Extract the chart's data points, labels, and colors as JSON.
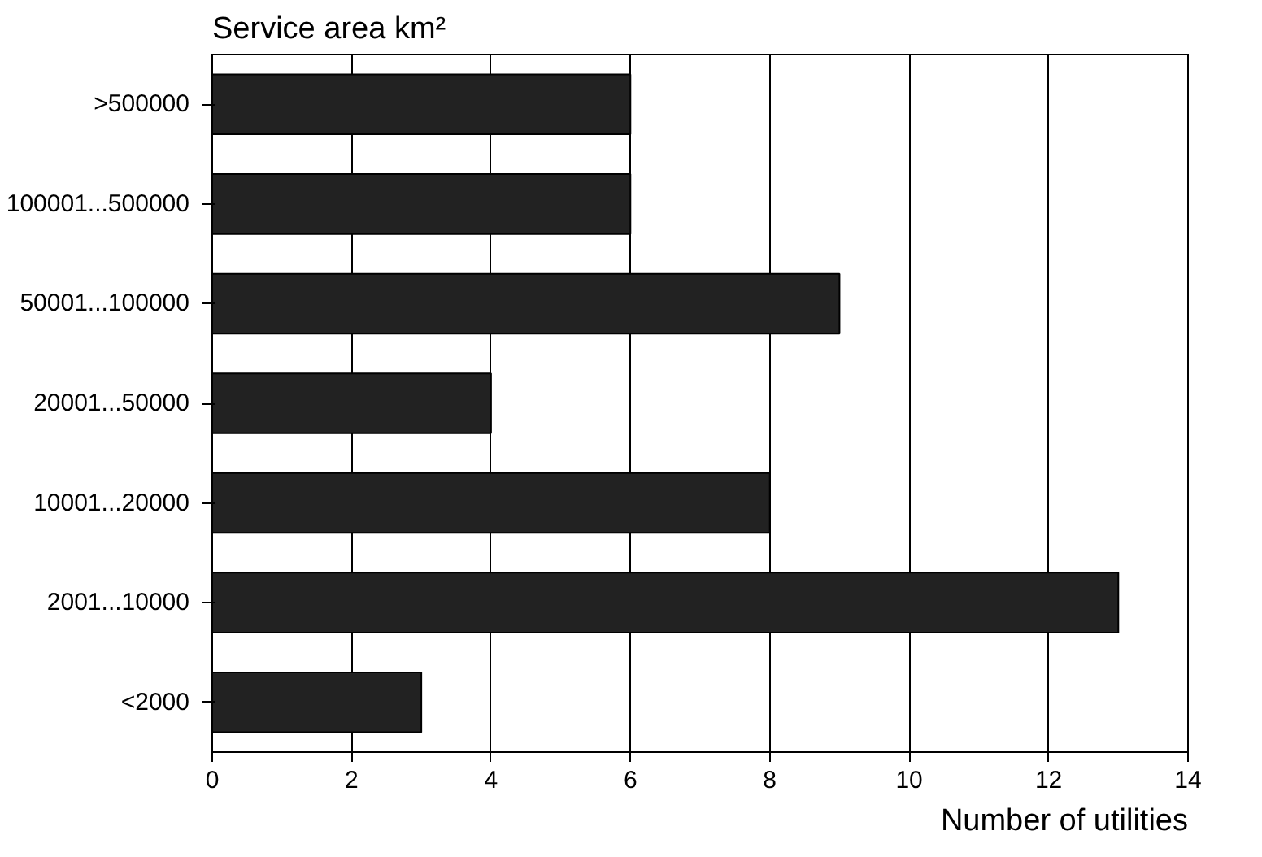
{
  "chart_data": {
    "type": "bar",
    "orientation": "horizontal",
    "ylabel": "Service area km²",
    "xlabel": "Number of utilities",
    "categories": [
      ">500000",
      "100001...500000",
      "50001...100000",
      "20001...50000",
      "10001...20000",
      "2001...10000",
      "<2000"
    ],
    "values": [
      6,
      6,
      9,
      4,
      8,
      13,
      3
    ],
    "color": "#222222",
    "xlim": [
      0,
      14
    ],
    "xticks": [
      0,
      2,
      4,
      6,
      8,
      10,
      12,
      14
    ],
    "grid": "x"
  }
}
